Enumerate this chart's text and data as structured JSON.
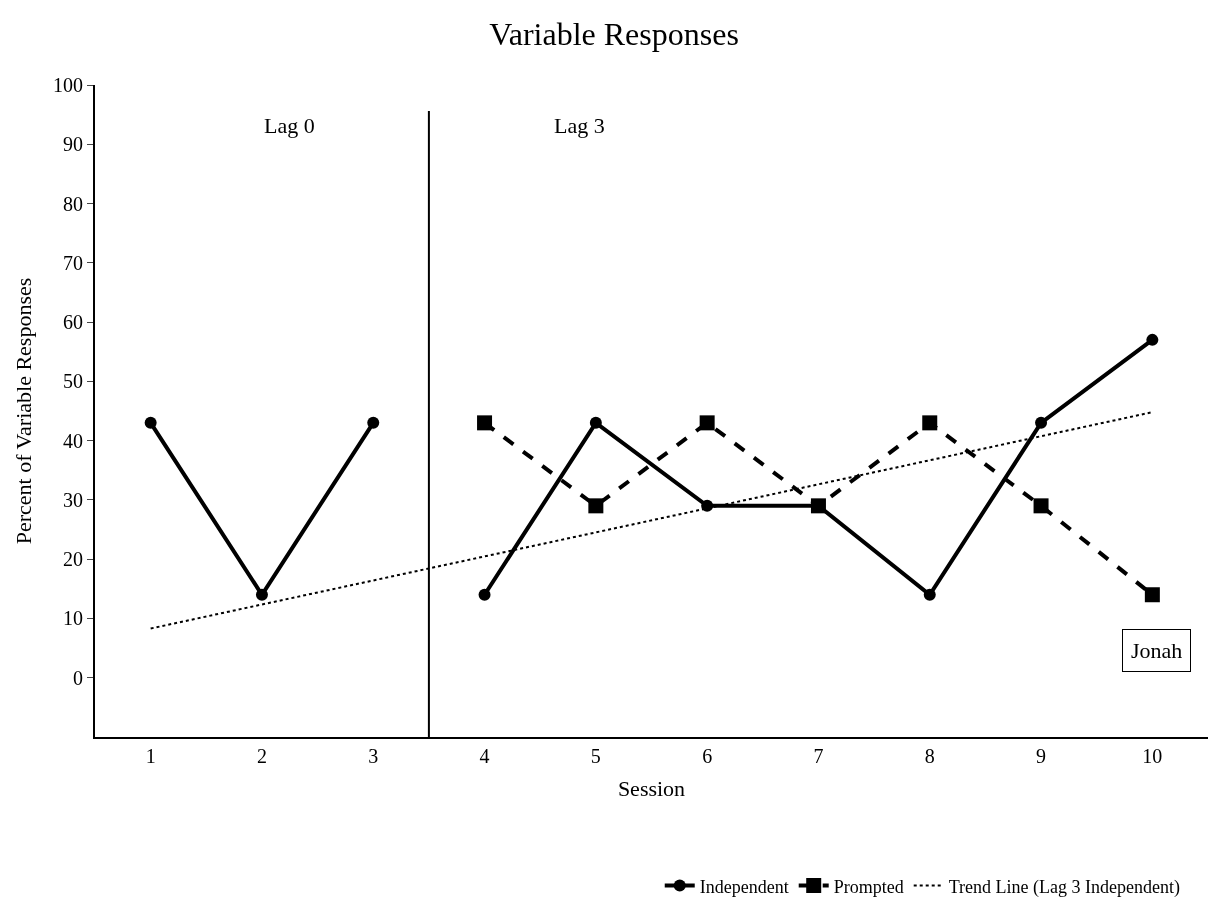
{
  "chart_data": {
    "type": "line",
    "title": "Variable Responses",
    "xlabel": "Session",
    "ylabel": "Percent of Variable Responses",
    "xlim": [
      0.5,
      10.5
    ],
    "xticks": [
      1,
      2,
      3,
      4,
      5,
      6,
      7,
      8,
      9,
      10
    ],
    "ylim": [
      -10,
      100
    ],
    "yticks": [
      0,
      10,
      20,
      30,
      40,
      50,
      60,
      70,
      80,
      90,
      100
    ],
    "legend": "bottom",
    "series": [
      {
        "name": "Independent",
        "color": "#000000",
        "marker": "circle",
        "line_style": "solid",
        "x": [
          1,
          2,
          3,
          4,
          5,
          6,
          7,
          8,
          9,
          10
        ],
        "values": [
          43,
          14,
          43,
          14,
          43,
          29,
          29,
          14,
          43,
          57
        ]
      },
      {
        "name": "Prompted",
        "color": "#000000",
        "marker": "square",
        "line_style": "dashed",
        "x": [
          4,
          5,
          6,
          7,
          8,
          9,
          10
        ],
        "values": [
          43,
          29,
          43,
          29,
          43,
          29,
          14
        ]
      },
      {
        "name": "Trend Line (Lag 3 Independent)",
        "color": "#000000",
        "marker": "none",
        "line_style": "dotted",
        "x": [
          1,
          10
        ],
        "values": [
          8.3,
          44.8
        ]
      }
    ],
    "ref_lines": [
      {
        "axis": "x",
        "value": 3.5,
        "color": "#000000",
        "line_style": "solid"
      }
    ],
    "annotations": [
      "Lag 0",
      "Lag 3",
      "Jonah"
    ]
  }
}
